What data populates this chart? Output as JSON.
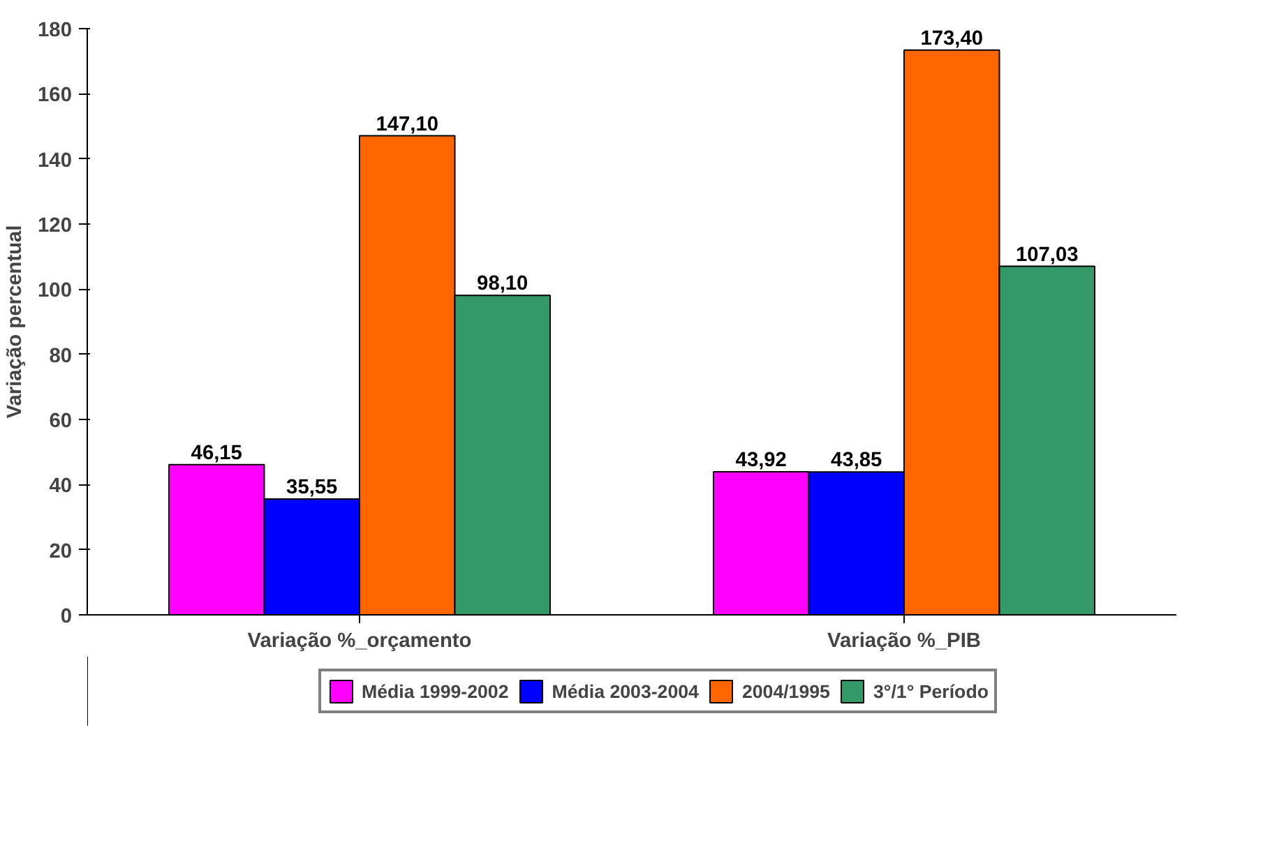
{
  "chart_data": {
    "type": "bar",
    "ylabel": "Variação percentual",
    "categories": [
      "Variação %_orçamento",
      "Variação %_PIB"
    ],
    "series": [
      {
        "name": "Média 1999-2002",
        "color": "#ff00ff",
        "values": [
          46.15,
          43.92
        ],
        "value_labels": [
          "46,15",
          "43,92"
        ]
      },
      {
        "name": "Média 2003-2004",
        "color": "#0000ff",
        "values": [
          35.55,
          43.85
        ],
        "value_labels": [
          "35,55",
          "43,85"
        ]
      },
      {
        "name": "2004/1995",
        "color": "#ff6600",
        "values": [
          147.1,
          173.4
        ],
        "value_labels": [
          "147,10",
          "173,40"
        ]
      },
      {
        "name": "3°/1° Período",
        "color": "#339966",
        "values": [
          98.1,
          107.03
        ],
        "value_labels": [
          "98,10",
          "107,03"
        ]
      }
    ],
    "ylim": [
      0,
      180
    ],
    "yticks": [
      0,
      20,
      40,
      60,
      80,
      100,
      120,
      140,
      160,
      180
    ],
    "grid": false,
    "legend": "bottom"
  }
}
